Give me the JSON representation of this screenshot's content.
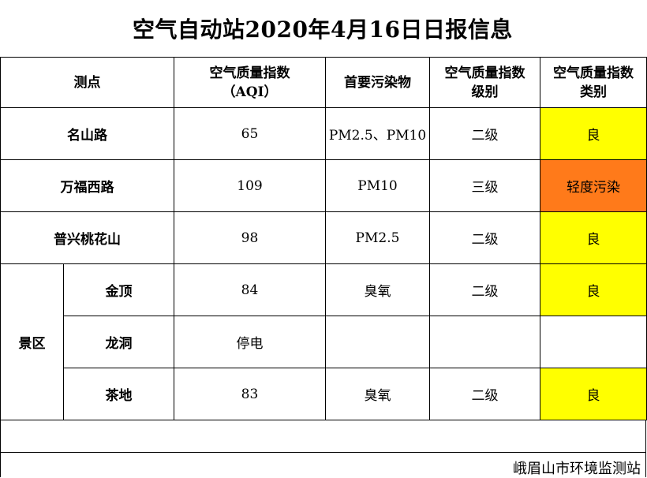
{
  "title": "空气自动站2020年4月16日日报信息",
  "headers": {
    "station": "测点",
    "aqi_line1": "空气质量指数",
    "aqi_line2": "（AQI）",
    "pollutant": "首要污染物",
    "level_line1": "空气质量指数",
    "level_line2": "级别",
    "category_line1": "空气质量指数",
    "category_line2": "类别"
  },
  "rows": [
    {
      "station": "名山路",
      "aqi": "65",
      "pollutant": "PM2.5、PM10",
      "level": "二级",
      "category": "良",
      "category_color": "#ffff00"
    },
    {
      "station": "万福西路",
      "aqi": "109",
      "pollutant": "PM10",
      "level": "三级",
      "category": "轻度污染",
      "category_color": "#ff7a1a"
    },
    {
      "station": "普兴桃花山",
      "aqi": "98",
      "pollutant": "PM2.5",
      "level": "二级",
      "category": "良",
      "category_color": "#ffff00"
    }
  ],
  "scenic": {
    "group_label": "景区",
    "rows": [
      {
        "station": "金顶",
        "aqi": "84",
        "pollutant": "臭氧",
        "level": "二级",
        "category": "良",
        "category_color": "#ffff00"
      },
      {
        "station": "龙洞",
        "aqi": "停电",
        "pollutant": "",
        "level": "",
        "category": "",
        "category_color": "#ffffff"
      },
      {
        "station": "茶地",
        "aqi": "83",
        "pollutant": "臭氧",
        "level": "二级",
        "category": "良",
        "category_color": "#ffff00"
      }
    ]
  },
  "footer": "峨眉山市环境监测站"
}
